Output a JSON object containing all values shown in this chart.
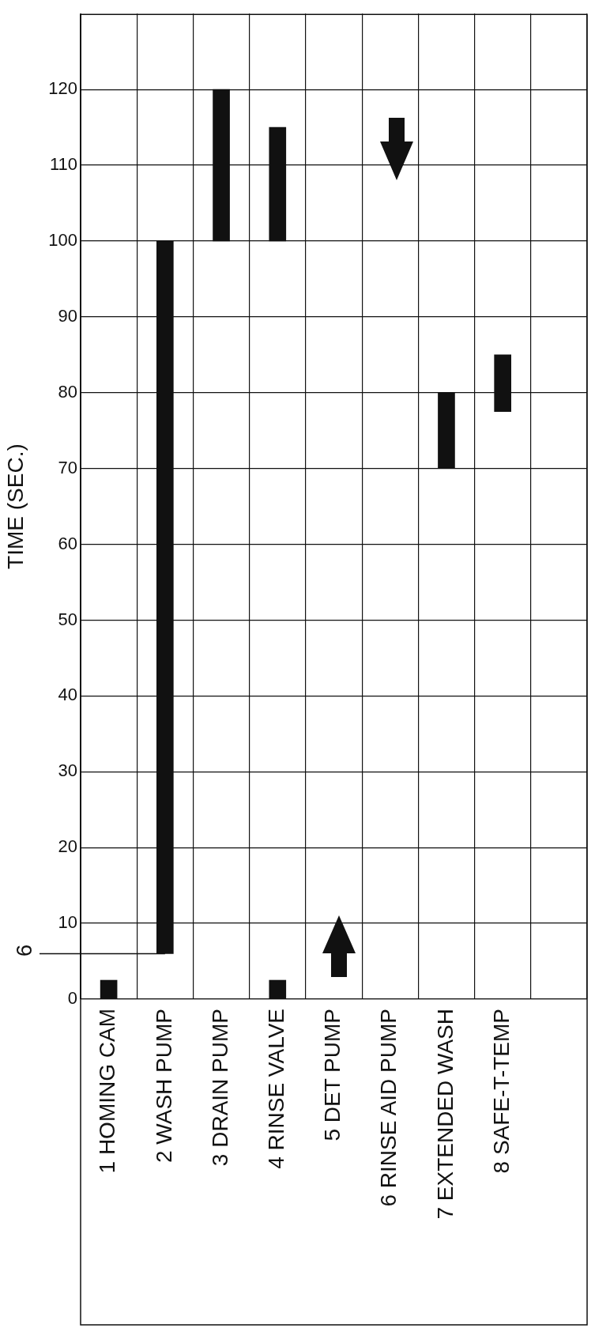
{
  "chart_data": {
    "type": "bar",
    "ylabel": "TIME (SEC.)",
    "categories": [
      "1 HOMING CAM",
      "2 WASH PUMP",
      "3 DRAIN PUMP",
      "4 RINSE VALVE",
      "5 DET PUMP",
      "6 RINSE AID PUMP",
      "7 EXTENDED WASH",
      "8 SAFE-T-TEMP",
      null
    ],
    "series": [
      {
        "color": "#111111",
        "values": [
          2.5,
          94,
          20,
          15,
          null,
          null,
          10,
          7.5,
          null
        ],
        "base": [
          0,
          6,
          100,
          100,
          null,
          null,
          70,
          77.5,
          null
        ]
      },
      {
        "color": "#111111",
        "values": [
          null,
          null,
          null,
          2.5,
          null,
          null,
          null,
          null,
          null
        ],
        "base": [
          null,
          null,
          null,
          0,
          null,
          null,
          null,
          null,
          null
        ]
      }
    ],
    "ylim": [
      0,
      130
    ],
    "yticks": [
      0,
      10,
      20,
      30,
      40,
      50,
      60,
      70,
      80,
      90,
      100,
      110,
      120
    ],
    "ref_lines": [
      {
        "axis": "y",
        "value": 6,
        "label": "6"
      }
    ],
    "grid": true,
    "legend": false
  }
}
